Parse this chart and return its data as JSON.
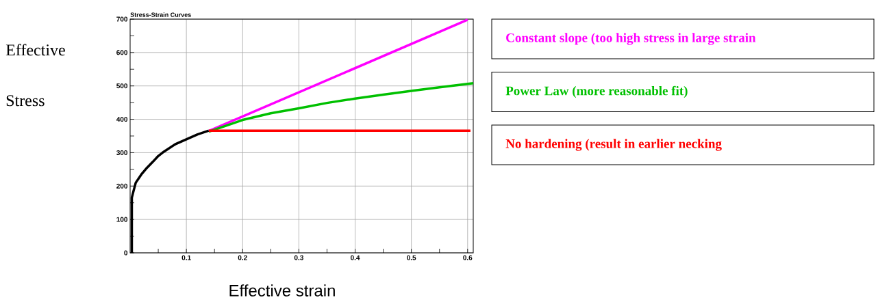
{
  "chart_data": {
    "type": "line",
    "title": "Stress-Strain Curves",
    "xlabel": "Effective strain",
    "ylabel": "Effective Stress",
    "xlim": [
      0,
      0.61
    ],
    "ylim": [
      0,
      700
    ],
    "xticks": [
      {
        "value": 0.05,
        "label": null
      },
      0.1,
      {
        "value": 0.15,
        "label": null
      },
      0.2,
      {
        "value": 0.25,
        "label": null
      },
      0.3,
      {
        "value": 0.35,
        "label": null
      },
      0.4,
      {
        "value": 0.45,
        "label": null
      },
      0.5,
      {
        "value": 0.55,
        "label": null
      },
      0.6
    ],
    "yticks": [
      0,
      {
        "value": 50,
        "label": null
      },
      100,
      {
        "value": 150,
        "label": null
      },
      200,
      {
        "value": 250,
        "label": null
      },
      300,
      {
        "value": 350,
        "label": null
      },
      400,
      {
        "value": 450,
        "label": null
      },
      500,
      {
        "value": 550,
        "label": null
      },
      600,
      {
        "value": 650,
        "label": null
      },
      700
    ],
    "grid": true,
    "legend": "right",
    "marker": "none",
    "line_style": "solid",
    "series": [
      {
        "color": "#000000",
        "x": [
          0.003,
          0.003,
          0.006,
          0.01,
          0.02,
          0.03,
          0.04,
          0.05,
          0.06,
          0.07,
          0.08,
          0.1,
          0.12,
          0.14
        ],
        "values": [
          0,
          165,
          185,
          210,
          235,
          255,
          272,
          290,
          303,
          314,
          325,
          340,
          355,
          366
        ]
      },
      {
        "name": "Constant slope (too high stress in large strain",
        "color": "#ff00ff",
        "x": [
          0.14,
          0.6
        ],
        "values": [
          365,
          698
        ]
      },
      {
        "name": "Power Law (more reasonable fit)",
        "color": "#00c000",
        "x": [
          0.14,
          0.2,
          0.25,
          0.3,
          0.35,
          0.4,
          0.45,
          0.5,
          0.55,
          0.61
        ],
        "values": [
          363,
          398,
          418,
          433,
          449,
          462,
          474,
          485,
          496,
          508
        ]
      },
      {
        "name": "No hardening (result in earlier necking",
        "color": "#ff0000",
        "x": [
          0.14,
          0.605
        ],
        "values": [
          366,
          366
        ]
      }
    ]
  }
}
